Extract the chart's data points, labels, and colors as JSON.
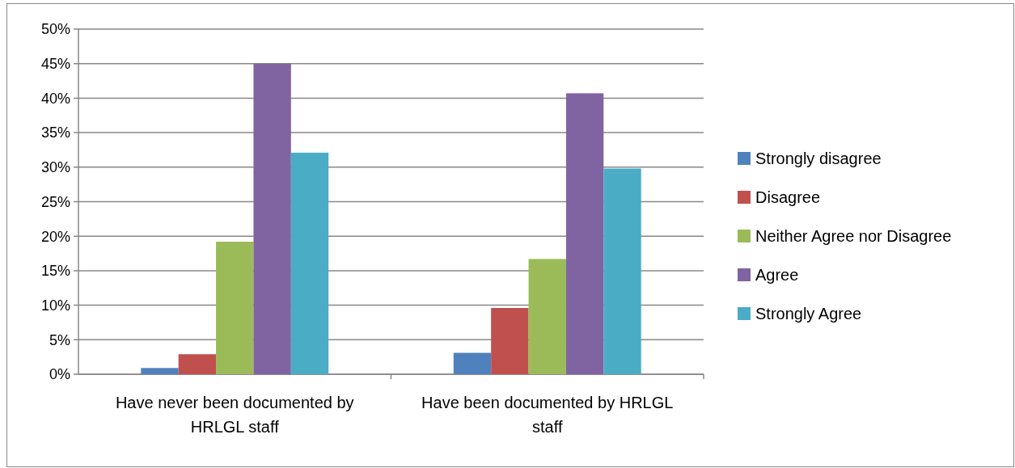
{
  "chart_data": {
    "type": "bar",
    "categories": [
      "Have never been documented by HRLGL staff",
      "Have been documented by HRLGL staff"
    ],
    "series": [
      {
        "name": "Strongly disagree",
        "color": "#4f81bd",
        "values": [
          0.9,
          3.1
        ]
      },
      {
        "name": "Disagree",
        "color": "#c0504d",
        "values": [
          2.9,
          9.6
        ]
      },
      {
        "name": "Neither Agree nor Disagree",
        "color": "#9bbb59",
        "values": [
          19.2,
          16.7
        ]
      },
      {
        "name": "Agree",
        "color": "#8064a2",
        "values": [
          45.0,
          40.7
        ]
      },
      {
        "name": "Strongly Agree",
        "color": "#4bacc6",
        "values": [
          32.1,
          29.8
        ]
      }
    ],
    "ylim": [
      0,
      50
    ],
    "yticks": [
      {
        "value": 0,
        "label": "0%"
      },
      {
        "value": 5,
        "label": "5%"
      },
      {
        "value": 10,
        "label": "10%"
      },
      {
        "value": 15,
        "label": "15%"
      },
      {
        "value": 20,
        "label": "20%"
      },
      {
        "value": 25,
        "label": "25%"
      },
      {
        "value": 30,
        "label": "30%"
      },
      {
        "value": 35,
        "label": "35%"
      },
      {
        "value": 40,
        "label": "40%"
      },
      {
        "value": 45,
        "label": "45%"
      },
      {
        "value": 50,
        "label": "50%"
      }
    ],
    "grid": "y",
    "legend": "right"
  }
}
